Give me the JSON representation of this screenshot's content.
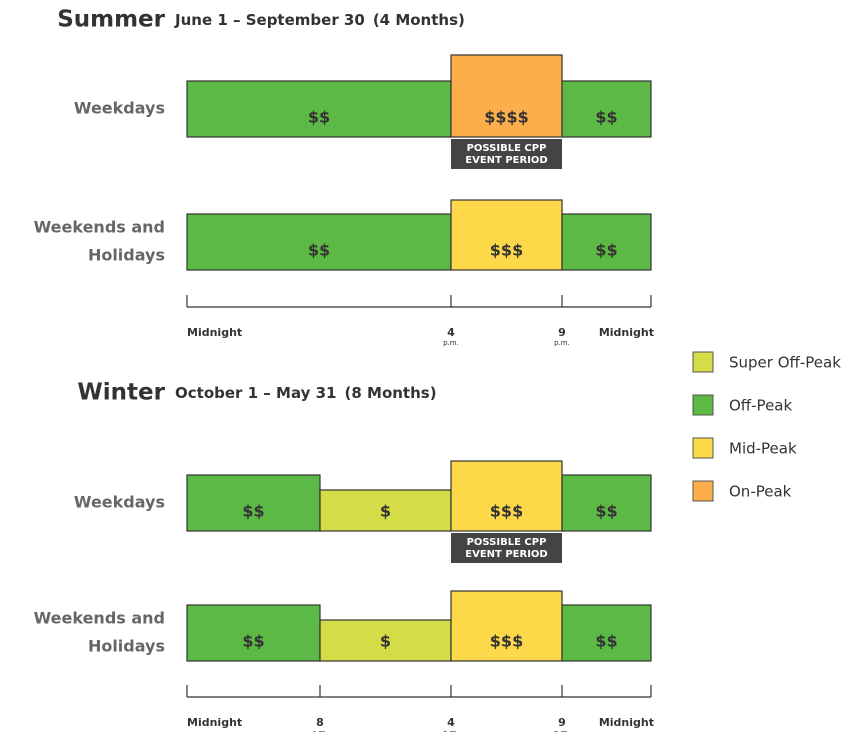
{
  "legend": [
    {
      "label": "Super Off-Peak",
      "color": "#d4dc47"
    },
    {
      "label": "Off-Peak",
      "color": "#5cb946"
    },
    {
      "label": "Mid-Peak",
      "color": "#fdd94a"
    },
    {
      "label": "On-Peak",
      "color": "#fbae4a"
    }
  ],
  "seasons": [
    {
      "name": "Summer",
      "dates": "June 1 – September 30",
      "duration": "(4 Months)",
      "rows": [
        {
          "label": [
            "Weekdays"
          ],
          "blocks": [
            {
              "text": "$$",
              "color": "#5cb946"
            },
            {
              "text": "$$$$",
              "color": "#fbae4a"
            },
            {
              "text": "$$",
              "color": "#5cb946"
            }
          ],
          "cpp": [
            "POSSIBLE CPP",
            "EVENT PERIOD"
          ]
        },
        {
          "label": [
            "Weekends and",
            "Holidays"
          ],
          "blocks": [
            {
              "text": "$$",
              "color": "#5cb946"
            },
            {
              "text": "$$$",
              "color": "#fdd94a"
            },
            {
              "text": "$$",
              "color": "#5cb946"
            }
          ]
        }
      ],
      "axis": [
        {
          "time": "Midnight"
        },
        {
          "time": "4",
          "suffix": "p.m."
        },
        {
          "time": "9",
          "suffix": "p.m."
        },
        {
          "time": "Midnight"
        }
      ]
    },
    {
      "name": "Winter",
      "dates": "October 1 – May 31",
      "duration": "(8 Months)",
      "rows": [
        {
          "label": [
            "Weekdays"
          ],
          "blocks": [
            {
              "text": "$$",
              "color": "#5cb946"
            },
            {
              "text": "$",
              "color": "#d4dc47"
            },
            {
              "text": "$$$",
              "color": "#fdd94a"
            },
            {
              "text": "$$",
              "color": "#5cb946"
            }
          ],
          "cpp": [
            "POSSIBLE CPP",
            "EVENT PERIOD"
          ]
        },
        {
          "label": [
            "Weekends and",
            "Holidays"
          ],
          "blocks": [
            {
              "text": "$$",
              "color": "#5cb946"
            },
            {
              "text": "$",
              "color": "#d4dc47"
            },
            {
              "text": "$$$",
              "color": "#fdd94a"
            },
            {
              "text": "$$",
              "color": "#5cb946"
            }
          ]
        }
      ],
      "axis": [
        {
          "time": "Midnight"
        },
        {
          "time": "8",
          "suffix": "a.m."
        },
        {
          "time": "4",
          "suffix": "p.m."
        },
        {
          "time": "9",
          "suffix": "p.m."
        },
        {
          "time": "Midnight"
        }
      ]
    }
  ]
}
